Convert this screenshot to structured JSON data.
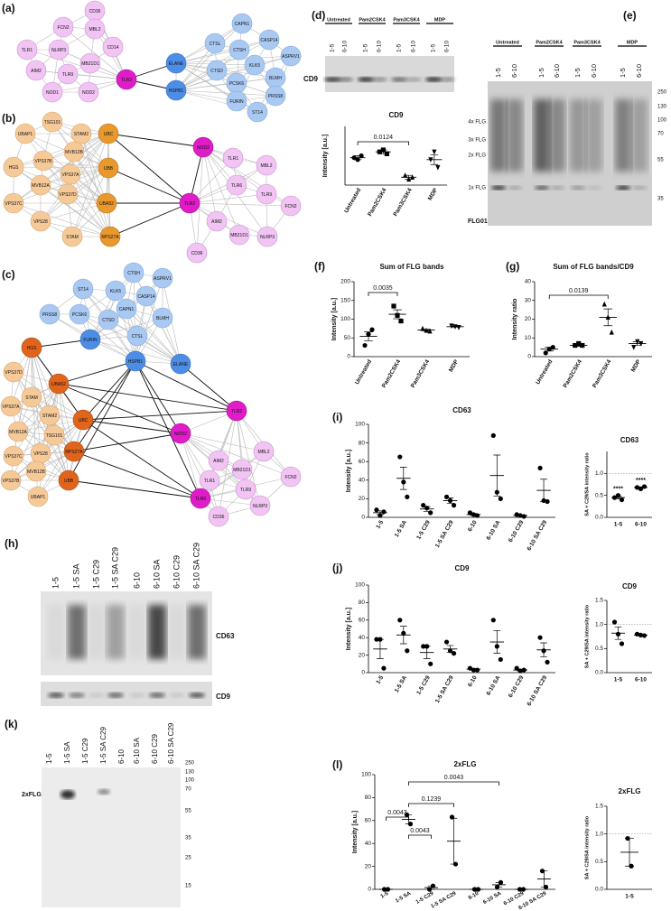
{
  "panel_labels": [
    "(a)",
    "(b)",
    "(c)",
    "(d)",
    "(e)",
    "(f)",
    "(g)",
    "(h)",
    "(i)",
    "(j)",
    "(k)",
    "(l)"
  ],
  "networks": [
    {
      "nodes": [
        {
          "label": "CD36",
          "color": "#f2c4f4"
        },
        {
          "label": "FCN2",
          "color": "#f2c4f4"
        },
        {
          "label": "MBL2",
          "color": "#f2c4f4"
        },
        {
          "label": "CD14",
          "color": "#f2c4f4"
        },
        {
          "label": "TLR1",
          "color": "#f2c4f4"
        },
        {
          "label": "NLRP3",
          "color": "#f2c4f4"
        },
        {
          "label": "MB21D1",
          "color": "#f2c4f4"
        },
        {
          "label": "AIM2",
          "color": "#f2c4f4"
        },
        {
          "label": "TLR9",
          "color": "#f2c4f4"
        },
        {
          "label": "NOD1",
          "color": "#f2c4f4"
        },
        {
          "label": "NOD2",
          "color": "#f2c4f4"
        },
        {
          "label": "TLR2",
          "color": "#e01cc8"
        },
        {
          "label": "ELANE",
          "color": "#4d8de6"
        },
        {
          "label": "HSPB1",
          "color": "#4d8de6"
        },
        {
          "label": "CTSL",
          "color": "#a9c9f2"
        },
        {
          "label": "CAPN1",
          "color": "#a9c9f2"
        },
        {
          "label": "CASP14",
          "color": "#a9c9f2"
        },
        {
          "label": "CTSH",
          "color": "#a9c9f2"
        },
        {
          "label": "ASPRV1",
          "color": "#a9c9f2"
        },
        {
          "label": "CTSD",
          "color": "#a9c9f2"
        },
        {
          "label": "KLK5",
          "color": "#a9c9f2"
        },
        {
          "label": "PCSK6",
          "color": "#a9c9f2"
        },
        {
          "label": "BLMH",
          "color": "#a9c9f2"
        },
        {
          "label": "FURIN",
          "color": "#a9c9f2"
        },
        {
          "label": "PRSS8",
          "color": "#a9c9f2"
        },
        {
          "label": "ST14",
          "color": "#a9c9f2"
        }
      ]
    },
    {
      "nodes": [
        {
          "label": "UBAP1",
          "color": "#f6ca98"
        },
        {
          "label": "TSG101",
          "color": "#f6ca98"
        },
        {
          "label": "STAM2",
          "color": "#f6ca98"
        },
        {
          "label": "HGS",
          "color": "#f6ca98"
        },
        {
          "label": "VPS37B",
          "color": "#f6ca98"
        },
        {
          "label": "MVB12B",
          "color": "#f6ca98"
        },
        {
          "label": "VPS37A",
          "color": "#f6ca98"
        },
        {
          "label": "MVB12A",
          "color": "#f6ca98"
        },
        {
          "label": "VPS37C",
          "color": "#f6ca98"
        },
        {
          "label": "VPS37D",
          "color": "#f6ca98"
        },
        {
          "label": "VPS28",
          "color": "#f6ca98"
        },
        {
          "label": "STAM",
          "color": "#f6ca98"
        },
        {
          "label": "UBC",
          "color": "#e8982c"
        },
        {
          "label": "UBB",
          "color": "#e8982c"
        },
        {
          "label": "UBA52",
          "color": "#e8982c"
        },
        {
          "label": "RPS27A",
          "color": "#e8982c"
        },
        {
          "label": "NOD2",
          "color": "#e01cc8"
        },
        {
          "label": "TLR2",
          "color": "#e01cc8"
        },
        {
          "label": "TLR1",
          "color": "#f2c4f4"
        },
        {
          "label": "MBL2",
          "color": "#f2c4f4"
        },
        {
          "label": "TLR6",
          "color": "#f2c4f4"
        },
        {
          "label": "TLR9",
          "color": "#f2c4f4"
        },
        {
          "label": "FCN2",
          "color": "#f2c4f4"
        },
        {
          "label": "AIM2",
          "color": "#f2c4f4"
        },
        {
          "label": "MB21D1",
          "color": "#f2c4f4"
        },
        {
          "label": "NLRP3",
          "color": "#f2c4f4"
        },
        {
          "label": "CD36",
          "color": "#f2c4f4"
        }
      ]
    },
    {
      "nodes": [
        {
          "label": "CTSH",
          "color": "#a9c9f2"
        },
        {
          "label": "ASPRV1",
          "color": "#a9c9f2"
        },
        {
          "label": "ST14",
          "color": "#a9c9f2"
        },
        {
          "label": "KLK5",
          "color": "#a9c9f2"
        },
        {
          "label": "CASP14",
          "color": "#a9c9f2"
        },
        {
          "label": "CAPN1",
          "color": "#a9c9f2"
        },
        {
          "label": "BLMH",
          "color": "#a9c9f2"
        },
        {
          "label": "PRSS8",
          "color": "#a9c9f2"
        },
        {
          "label": "PCSK6",
          "color": "#a9c9f2"
        },
        {
          "label": "CTSD",
          "color": "#a9c9f2"
        },
        {
          "label": "CTSL",
          "color": "#a9c9f2"
        },
        {
          "label": "FURIN",
          "color": "#4d8de6"
        },
        {
          "label": "HSPB1",
          "color": "#4d8de6"
        },
        {
          "label": "ELANE",
          "color": "#4d8de6"
        },
        {
          "label": "HGS",
          "color": "#e0641c"
        },
        {
          "label": "UBA52",
          "color": "#e0641c"
        },
        {
          "label": "UBC",
          "color": "#e0641c"
        },
        {
          "label": "RPS27A",
          "color": "#e0641c"
        },
        {
          "label": "UBB",
          "color": "#e0641c"
        },
        {
          "label": "VPS37D",
          "color": "#f6ca98"
        },
        {
          "label": "STAM",
          "color": "#f6ca98"
        },
        {
          "label": "VPS37A",
          "color": "#f6ca98"
        },
        {
          "label": "STAM2",
          "color": "#f6ca98"
        },
        {
          "label": "MVB12A",
          "color": "#f6ca98"
        },
        {
          "label": "TSG101",
          "color": "#f6ca98"
        },
        {
          "label": "VPS37C",
          "color": "#f6ca98"
        },
        {
          "label": "VPS28",
          "color": "#f6ca98"
        },
        {
          "label": "MVB12B",
          "color": "#f6ca98"
        },
        {
          "label": "VPS37B",
          "color": "#f6ca98"
        },
        {
          "label": "UBAP1",
          "color": "#f6ca98"
        },
        {
          "label": "TLR2",
          "color": "#e01cc8"
        },
        {
          "label": "NOD2",
          "color": "#e01cc8"
        },
        {
          "label": "TLR6",
          "color": "#e01cc8"
        },
        {
          "label": "MBL2",
          "color": "#f2c4f4"
        },
        {
          "label": "AIM2",
          "color": "#f2c4f4"
        },
        {
          "label": "MB21D1",
          "color": "#f2c4f4"
        },
        {
          "label": "FCN2",
          "color": "#f2c4f4"
        },
        {
          "label": "TLR1",
          "color": "#f2c4f4"
        },
        {
          "label": "TLR9",
          "color": "#f2c4f4"
        },
        {
          "label": "NLRP3",
          "color": "#f2c4f4"
        },
        {
          "label": "CD36",
          "color": "#f2c4f4"
        }
      ]
    }
  ],
  "blots": [
    {
      "groups": [
        "Untreated",
        "Pam2CSK4",
        "Pam3CSK4",
        "MDP"
      ],
      "lanes": [
        "1-5",
        "6-10",
        "1-5",
        "6-10",
        "1-5",
        "6-10",
        "1-5",
        "6-10"
      ],
      "target": "CD9"
    },
    {
      "groups": [
        "Untreated",
        "Pam2CSK4",
        "Pam3CSK4",
        "MDP"
      ],
      "lanes": [
        "1-5",
        "6-10",
        "1-5",
        "6-10",
        "1-5",
        "6-10",
        "1-5",
        "6-10"
      ],
      "band_labels": [
        "4x FLG",
        "3x FLG",
        "2x FLG",
        "1x FLG"
      ],
      "antibody": "FLG01",
      "markers": [
        250,
        130,
        100,
        70,
        55,
        35
      ]
    },
    {
      "lanes": [
        "1-5",
        "1-5 SA",
        "1-5 C29",
        "1-5 SA C29",
        "6-10",
        "6-10 SA",
        "6-10 C29",
        "6-10 SA C29"
      ],
      "targets": [
        "CD63",
        "CD9"
      ]
    },
    {
      "lanes": [
        "1-5",
        "1-5 SA",
        "1-5 C29",
        "1-5 SA C29",
        "6-10",
        "6-10 SA",
        "6-10 C29",
        "6-10 SA C29"
      ],
      "band_label": "2xFLG",
      "markers": [
        250,
        130,
        100,
        70,
        55,
        35,
        25,
        15
      ]
    }
  ],
  "chart_data": [
    {
      "type": "dot",
      "title": "CD9",
      "y_label": "Intensity [a.u.]",
      "color": "#000000",
      "categories": [
        "Untreated",
        "Pam2CSK4",
        "Pam3CSK4",
        "MDP"
      ],
      "markers": [
        "circle",
        "square",
        "triangle",
        "triangle-down"
      ],
      "points": [
        [
          14,
          13,
          15
        ],
        [
          17,
          18,
          16
        ],
        [
          5,
          3,
          4
        ],
        [
          13,
          17,
          9
        ]
      ],
      "means": [
        14,
        17,
        4,
        13
      ],
      "errors": [
        1,
        1,
        1,
        2.5
      ],
      "ylim": [
        0,
        30
      ],
      "brackets": [
        {
          "label": "0.0124",
          "between": [
            "Untreated",
            "Pam3CSK4"
          ]
        }
      ]
    },
    {
      "type": "dot",
      "title": "Sum of FLG bands",
      "y_label": "Intensity [a.u.]",
      "color": "#000000",
      "categories": [
        "Untreated",
        "Pam2CSK4",
        "Pam3CSK4",
        "MDP"
      ],
      "markers": [
        "circle",
        "square",
        "triangle",
        "triangle-down"
      ],
      "points": [
        [
          30,
          60,
          72
        ],
        [
          135,
          110,
          95
        ],
        [
          75,
          70,
          68
        ],
        [
          82,
          80,
          78
        ]
      ],
      "means": [
        54,
        113,
        71,
        80
      ],
      "errors": [
        12,
        12,
        2,
        1
      ],
      "ylim": [
        0,
        200
      ],
      "yticks": [
        0,
        50,
        100,
        150,
        200
      ],
      "brackets": [
        {
          "label": "0.0035",
          "between": [
            "Untreated",
            "Pam2CSK4"
          ]
        }
      ]
    },
    {
      "type": "dot",
      "title": "Sum of FLG bands/CD9",
      "y_label": "Intensity ratio",
      "color": "#000000",
      "categories": [
        "Untreated",
        "Pam2CSK4",
        "Pam3CSK4",
        "MDP"
      ],
      "markers": [
        "circle",
        "square",
        "triangle",
        "triangle-down"
      ],
      "points": [
        [
          2,
          4,
          5
        ],
        [
          6,
          7,
          6
        ],
        [
          28,
          21,
          13
        ],
        [
          5,
          8,
          7
        ]
      ],
      "means": [
        4,
        6,
        21,
        7
      ],
      "errors": [
        1,
        0.5,
        4.5,
        1
      ],
      "ylim": [
        0,
        40
      ],
      "yticks": [
        0,
        10,
        20,
        30,
        40
      ],
      "brackets": [
        {
          "label": "0.0139",
          "between": [
            "Untreated",
            "Pam3CSK4"
          ]
        }
      ]
    },
    {
      "type": "dot",
      "title": "CD63",
      "y_label": "Intensity [a.u.]",
      "color": "#000000",
      "categories": [
        "1-5",
        "1-5 SA",
        "1-5 C29",
        "1-5 SA C29",
        "6-10",
        "6-10 SA",
        "6-10 C29",
        "6-10 SA C29"
      ],
      "points": [
        [
          8,
          2,
          6
        ],
        [
          65,
          38,
          22
        ],
        [
          13,
          10,
          5
        ],
        [
          22,
          18,
          13
        ],
        [
          5,
          3,
          2
        ],
        [
          88,
          27,
          20
        ],
        [
          3,
          2,
          1
        ],
        [
          53,
          18,
          17
        ]
      ],
      "means": [
        5,
        42,
        9,
        18,
        3,
        45,
        2,
        29
      ],
      "errors": [
        2,
        12,
        2.5,
        3,
        1,
        22,
        0.6,
        12
      ],
      "ylim": [
        0,
        100
      ],
      "yticks": [
        0,
        20,
        40,
        60,
        80,
        100
      ]
    },
    {
      "type": "dot",
      "title": "CD63",
      "y_label": "SA + C29/SA intensity ratio",
      "color": "#000000",
      "categories": [
        "1-5",
        "6-10"
      ],
      "points": [
        [
          0.45,
          0.5,
          0.4
        ],
        [
          0.68,
          0.65,
          0.7
        ]
      ],
      "means": [
        0.45,
        0.68
      ],
      "errors": [
        0.03,
        0.015
      ],
      "point_labels": [
        "****",
        "****"
      ],
      "reference_line": 1,
      "ylim": [
        0,
        1.5
      ],
      "yticks": [
        {
          "value": 0,
          "label": "0.0"
        },
        {
          "value": 0.5,
          "label": "0.5"
        },
        {
          "value": 1,
          "label": "1.0"
        }
      ]
    },
    {
      "type": "dot",
      "title": "CD9",
      "y_label": "Intensity [a.u.]",
      "color": "#000000",
      "categories": [
        "1-5",
        "1-5 SA",
        "1-5 C29",
        "1-5 SA C29",
        "6-10",
        "6-10 SA",
        "6-10 C29",
        "6-10 SA C29"
      ],
      "points": [
        [
          38,
          38,
          5
        ],
        [
          60,
          45,
          25
        ],
        [
          30,
          30,
          10
        ],
        [
          35,
          25,
          22
        ],
        [
          5,
          3,
          3
        ],
        [
          60,
          30,
          15
        ],
        [
          5,
          2,
          3
        ],
        [
          40,
          25,
          12
        ]
      ],
      "means": [
        27,
        43,
        23,
        27,
        4,
        35,
        3,
        26
      ],
      "errors": [
        11,
        10,
        7,
        4,
        0.7,
        13,
        0.9,
        8
      ],
      "ylim": [
        0,
        100
      ],
      "yticks": [
        0,
        20,
        40,
        60,
        80,
        100
      ]
    },
    {
      "type": "dot",
      "title": "CD9",
      "y_label": "SA + C29/SA intensity ratio",
      "color": "#000000",
      "categories": [
        "1-5",
        "6-10"
      ],
      "points": [
        [
          1.05,
          0.8,
          0.6
        ],
        [
          0.8,
          0.78,
          0.77
        ]
      ],
      "means": [
        0.82,
        0.78
      ],
      "errors": [
        0.13,
        0.01
      ],
      "reference_line": 1,
      "ylim": [
        0,
        1.5
      ],
      "yticks": [
        {
          "value": 0,
          "label": "0.0"
        },
        {
          "value": 0.5,
          "label": "0.5"
        },
        {
          "value": 1,
          "label": "1.0"
        },
        {
          "value": 1.5,
          "label": "1.5"
        }
      ]
    },
    {
      "type": "dot",
      "title": "2xFLG",
      "y_label": "Intensity [a.u.]",
      "color": "#000000",
      "categories": [
        "1-5",
        "1-5 SA",
        "1-5 C29",
        "1-5 SA C29",
        "6-10",
        "6-10 SA",
        "6-10 C29",
        "6-10 SA C29"
      ],
      "points": [
        [
          0,
          0
        ],
        [
          65,
          57
        ],
        [
          0,
          3
        ],
        [
          63,
          22
        ],
        [
          0,
          0
        ],
        [
          2,
          6
        ],
        [
          0,
          0
        ],
        [
          16,
          2
        ]
      ],
      "means": [
        0,
        61,
        1.5,
        42,
        0,
        4,
        0,
        9
      ],
      "errors": [
        0,
        4,
        1.5,
        20,
        0,
        2,
        0,
        7
      ],
      "ylim": [
        0,
        100
      ],
      "yticks": [
        0,
        20,
        40,
        60,
        80,
        100
      ],
      "brackets": [
        {
          "label": "0.0043",
          "between": [
            "1-5",
            "1-5 SA"
          ]
        },
        {
          "label": "0.0043",
          "between": [
            "1-5 SA",
            "1-5 C29"
          ]
        },
        {
          "label": "0.1239",
          "between": [
            "1-5 SA",
            "1-5 SA C29"
          ]
        },
        {
          "label": "0.0043",
          "between": [
            "1-5 SA",
            "6-10 SA"
          ]
        }
      ]
    },
    {
      "type": "dot",
      "title": "2xFLG",
      "y_label": "SA + C29/SA intensity ratio",
      "color": "#000000",
      "categories": [
        "1-5"
      ],
      "points": [
        [
          0.92,
          0.42
        ]
      ],
      "means": [
        0.67
      ],
      "errors": [
        0.25
      ],
      "reference_line": 1,
      "ylim": [
        0,
        1.5
      ],
      "yticks": [
        {
          "value": 0,
          "label": "0.0"
        },
        {
          "value": 0.5,
          "label": "0.5"
        },
        {
          "value": 1,
          "label": "1.0"
        },
        {
          "value": 1.5,
          "label": "1.5"
        }
      ]
    }
  ]
}
